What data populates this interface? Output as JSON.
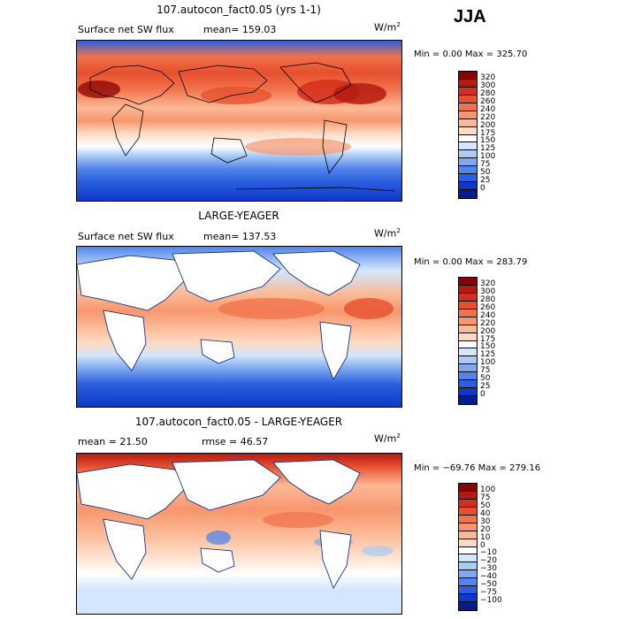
{
  "season": "JJA",
  "chart_data": [
    {
      "type": "heatmap",
      "title": "107.autocon_fact0.05 (yrs 1-1)",
      "left_label": "Surface net SW flux",
      "mean_label": "mean= 159.03",
      "units": "W/m",
      "units_exp": "2",
      "min_max": "Min =    0.00 Max = 325.70",
      "min": 0.0,
      "max": 325.7,
      "colorbar_levels": [
        "320",
        "300",
        "280",
        "260",
        "240",
        "220",
        "200",
        "175",
        "150",
        "125",
        "100",
        "75",
        "50",
        "25",
        "0"
      ],
      "colorbar_colors": [
        "#8b0000",
        "#b51a10",
        "#d42e1c",
        "#e7502e",
        "#f1714a",
        "#f7966d",
        "#fbb995",
        "#fddac4",
        "#ffffff",
        "#d3e6fb",
        "#a9cbf6",
        "#7ea9ef",
        "#5285ea",
        "#2b5fe0",
        "#0f38c8",
        "#001f8f"
      ],
      "land_masked": false
    },
    {
      "type": "heatmap",
      "title": "LARGE-YEAGER",
      "left_label": "Surface net SW flux",
      "mean_label": "mean= 137.53",
      "units": "W/m",
      "units_exp": "2",
      "min_max": "Min =    0.00 Max = 283.79",
      "min": 0.0,
      "max": 283.79,
      "colorbar_levels": [
        "320",
        "300",
        "280",
        "260",
        "240",
        "220",
        "200",
        "175",
        "150",
        "125",
        "100",
        "75",
        "50",
        "25",
        "0"
      ],
      "colorbar_colors": [
        "#8b0000",
        "#b51a10",
        "#d42e1c",
        "#e7502e",
        "#f1714a",
        "#f7966d",
        "#fbb995",
        "#fddac4",
        "#ffffff",
        "#d3e6fb",
        "#a9cbf6",
        "#7ea9ef",
        "#5285ea",
        "#2b5fe0",
        "#0f38c8",
        "#001f8f"
      ],
      "land_masked": true
    },
    {
      "type": "heatmap",
      "title": "107.autocon_fact0.05 - LARGE-YEAGER",
      "left_label": "mean =  21.50",
      "mean_label": "rmse =  46.57",
      "units": "W/m",
      "units_exp": "2",
      "min_max": "Min = −69.76 Max = 279.16",
      "min": -69.76,
      "max": 279.16,
      "colorbar_levels": [
        "100",
        "75",
        "50",
        "40",
        "30",
        "20",
        "10",
        "0",
        "−10",
        "−20",
        "−30",
        "−40",
        "−50",
        "−75",
        "−100"
      ],
      "colorbar_colors": [
        "#8b0000",
        "#b51a10",
        "#d42e1c",
        "#e7502e",
        "#f1714a",
        "#f7966d",
        "#fbb995",
        "#fddac4",
        "#ffffff",
        "#d3e6fb",
        "#a9cbf6",
        "#7ea9ef",
        "#5285ea",
        "#2b5fe0",
        "#0f38c8",
        "#001f8f"
      ],
      "land_masked": true
    }
  ]
}
